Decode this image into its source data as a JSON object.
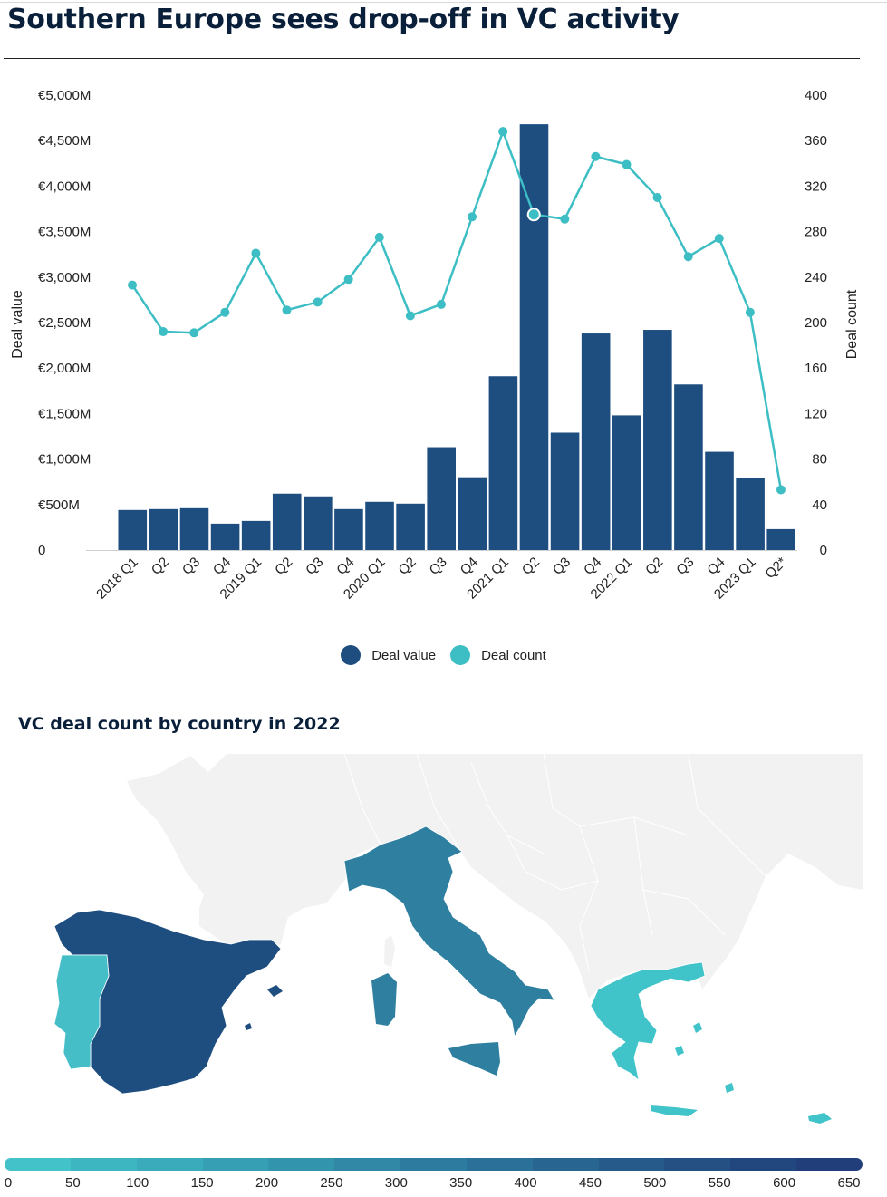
{
  "title": "Southern Europe sees drop-off in VC activity",
  "chart_data": {
    "type": "bar",
    "categories": [
      "2018 Q1",
      "Q2",
      "Q3",
      "Q4",
      "2019 Q1",
      "Q2",
      "Q3",
      "Q4",
      "2020 Q1",
      "Q2",
      "Q3",
      "Q4",
      "2021 Q1",
      "Q2",
      "Q3",
      "Q4",
      "2022 Q1",
      "Q2",
      "Q3",
      "Q4",
      "2023 Q1",
      "Q2*"
    ],
    "series": [
      {
        "name": "Deal value",
        "type": "bar",
        "axis": "left",
        "color": "#1e4e80",
        "values": [
          440,
          450,
          460,
          290,
          320,
          620,
          590,
          450,
          530,
          510,
          1130,
          800,
          1910,
          4680,
          1290,
          2380,
          1480,
          2420,
          1820,
          1080,
          790,
          230
        ]
      },
      {
        "name": "Deal count",
        "type": "line",
        "axis": "right",
        "color": "#3dbec4",
        "values": [
          233,
          192,
          191,
          209,
          261,
          211,
          218,
          238,
          275,
          206,
          216,
          293,
          368,
          295,
          291,
          346,
          339,
          310,
          258,
          274,
          209,
          53
        ]
      }
    ],
    "ylabel": "Deal value",
    "y2label": "Deal count",
    "ylim": [
      0,
      5000
    ],
    "y2lim": [
      0,
      400
    ],
    "yticks": [
      "0",
      "€500M",
      "€1,000M",
      "€1,500M",
      "€2,000M",
      "€2,500M",
      "€3,000M",
      "€3,500M",
      "€4,000M",
      "€4,500M",
      "€5,000M"
    ],
    "y2ticks": [
      "0",
      "40",
      "80",
      "120",
      "160",
      "200",
      "240",
      "280",
      "320",
      "360",
      "400"
    ],
    "highlighted_point": "Q2",
    "grid": false,
    "legend_position": "bottom-center"
  },
  "map": {
    "title": "VC deal count by country in 2022",
    "countries": [
      {
        "name": "Spain",
        "color": "#1e4e80"
      },
      {
        "name": "Italy",
        "color": "#2e7fa0"
      },
      {
        "name": "Portugal",
        "color": "#45bec7"
      },
      {
        "name": "Greece",
        "color": "#40c3c9"
      }
    ],
    "background_color": "#f2f2f2",
    "scale": {
      "labels": [
        "0",
        "50",
        "100",
        "150",
        "200",
        "250",
        "300",
        "350",
        "400",
        "450",
        "500",
        "550",
        "600",
        "650"
      ],
      "colors": [
        "#43c2c9",
        "#3eb6c2",
        "#3aabbb",
        "#369fb4",
        "#3394ad",
        "#3088a6",
        "#2d7c9f",
        "#2b7098",
        "#286591",
        "#265a8a",
        "#245084",
        "#22477f",
        "#213e7a"
      ]
    }
  }
}
